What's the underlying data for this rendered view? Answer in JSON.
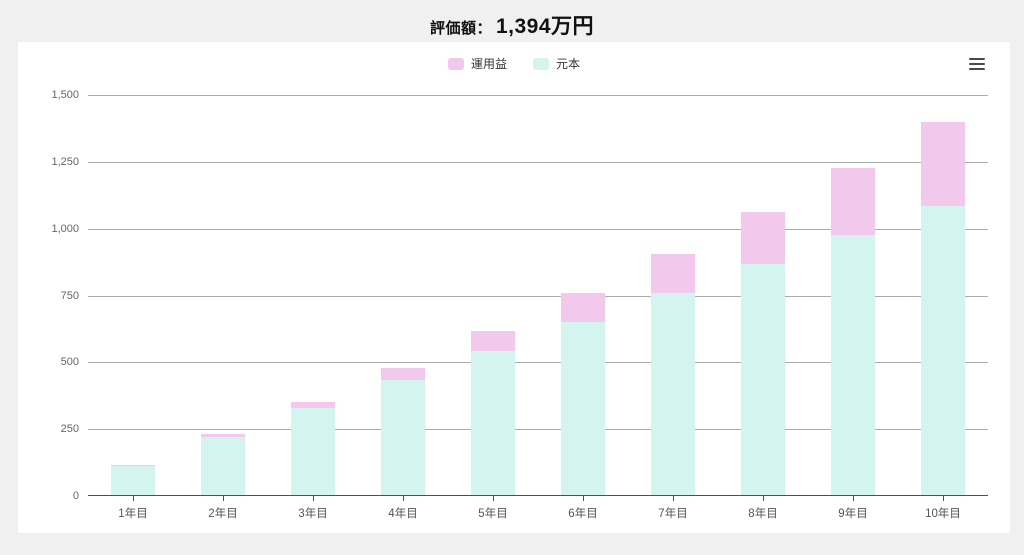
{
  "title": {
    "label": "評価額：",
    "value": "1,394万円"
  },
  "menu": {
    "icon": "hamburger-menu-icon"
  },
  "chart_data": {
    "type": "bar",
    "stacked": true,
    "title": "評価額： 1,394万円",
    "categories": [
      "1年目",
      "2年目",
      "3年目",
      "4年目",
      "5年目",
      "6年目",
      "7年目",
      "8年目",
      "9年目",
      "10年目"
    ],
    "series": [
      {
        "name": "元本",
        "slug": "principal",
        "color": "#D4F4F0",
        "values": [
          108,
          216,
          324,
          432,
          540,
          648,
          756,
          864,
          972,
          1080
        ]
      },
      {
        "name": "運用益",
        "slug": "gain",
        "color": "#F2C9ED",
        "values": [
          3,
          11,
          25,
          45,
          72,
          106,
          147,
          196,
          252,
          314
        ]
      }
    ],
    "totals": [
      111,
      227,
      349,
      477,
      612,
      754,
      903,
      1060,
      1224,
      1394
    ],
    "legend_order": [
      "運用益",
      "元本"
    ],
    "legend_position": "top-center",
    "unit": "万円",
    "ylim": [
      0,
      1500
    ],
    "yticks": [
      {
        "value": 0,
        "label": "0"
      },
      {
        "value": 250,
        "label": "250"
      },
      {
        "value": 500,
        "label": "500"
      },
      {
        "value": 750,
        "label": "750"
      },
      {
        "value": 1000,
        "label": "1,000"
      },
      {
        "value": 1250,
        "label": "1,250"
      },
      {
        "value": 1500,
        "label": "1,500"
      }
    ],
    "grid": true
  },
  "colors": {
    "background": "#f0f0f0",
    "card": "#ffffff",
    "gridline": "#ababab",
    "axis": "#4f4f4f",
    "gain": "#F2C9ED",
    "principal": "#D4F4F0"
  }
}
